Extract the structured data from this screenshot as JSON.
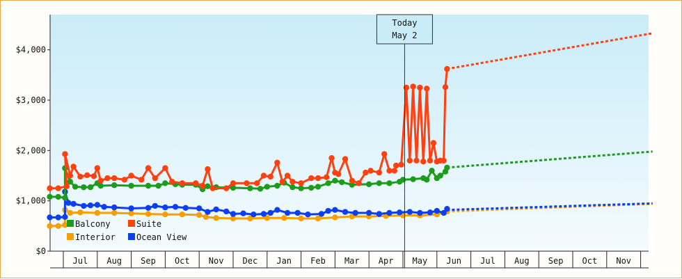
{
  "chart_data": {
    "type": "line",
    "title": "",
    "xlabel": "",
    "ylabel": "",
    "currency": "$",
    "y_ticks": [
      "$0",
      "$1,000",
      "$2,000",
      "$3,000",
      "$4,000"
    ],
    "y_tick_values": [
      0,
      1000,
      2000,
      3000,
      4000
    ],
    "ylim": [
      0,
      4700
    ],
    "month_labels": [
      "Jul",
      "Aug",
      "Sep",
      "Oct",
      "Nov",
      "Dec",
      "Jan",
      "Feb",
      "Mar",
      "Apr",
      "May",
      "Jun",
      "Jul",
      "Aug",
      "Sep",
      "Oct",
      "Nov"
    ],
    "x_range_months": [
      0,
      17.35
    ],
    "today": {
      "line1": "Today",
      "line2": "May 2",
      "month_pos": 10.05
    },
    "grid": false,
    "legend_position": "bottom-left",
    "series": [
      {
        "name": "Suite",
        "color": "#ff4010",
        "history": [
          [
            -0.4,
            1250
          ],
          [
            -0.15,
            1250
          ],
          [
            0.1,
            1290
          ],
          [
            0.05,
            1930
          ],
          [
            0.2,
            1500
          ],
          [
            0.3,
            1680
          ],
          [
            0.5,
            1480
          ],
          [
            0.7,
            1510
          ],
          [
            0.9,
            1490
          ],
          [
            1.0,
            1650
          ],
          [
            1.1,
            1400
          ],
          [
            1.3,
            1450
          ],
          [
            1.5,
            1450
          ],
          [
            1.8,
            1420
          ],
          [
            2.0,
            1500
          ],
          [
            2.3,
            1420
          ],
          [
            2.5,
            1650
          ],
          [
            2.7,
            1450
          ],
          [
            3.0,
            1650
          ],
          [
            3.2,
            1380
          ],
          [
            3.5,
            1350
          ],
          [
            3.9,
            1350
          ],
          [
            4.1,
            1300
          ],
          [
            4.25,
            1630
          ],
          [
            4.4,
            1250
          ],
          [
            4.8,
            1250
          ],
          [
            5.0,
            1350
          ],
          [
            5.4,
            1350
          ],
          [
            5.7,
            1350
          ],
          [
            5.9,
            1500
          ],
          [
            6.1,
            1480
          ],
          [
            6.3,
            1760
          ],
          [
            6.45,
            1380
          ],
          [
            6.6,
            1500
          ],
          [
            6.75,
            1380
          ],
          [
            7.0,
            1350
          ],
          [
            7.3,
            1450
          ],
          [
            7.5,
            1450
          ],
          [
            7.75,
            1470
          ],
          [
            7.9,
            1850
          ],
          [
            8.0,
            1560
          ],
          [
            8.1,
            1530
          ],
          [
            8.3,
            1830
          ],
          [
            8.5,
            1400
          ],
          [
            8.7,
            1350
          ],
          [
            8.9,
            1560
          ],
          [
            9.05,
            1600
          ],
          [
            9.3,
            1560
          ],
          [
            9.45,
            1930
          ],
          [
            9.6,
            1600
          ],
          [
            9.75,
            1600
          ],
          [
            9.8,
            1700
          ],
          [
            9.95,
            1720
          ],
          [
            10.1,
            3250
          ],
          [
            10.2,
            1800
          ],
          [
            10.3,
            3270
          ],
          [
            10.4,
            1800
          ],
          [
            10.5,
            3250
          ],
          [
            10.6,
            1780
          ],
          [
            10.7,
            3230
          ],
          [
            10.8,
            1800
          ],
          [
            10.9,
            2150
          ],
          [
            11.0,
            1780
          ],
          [
            11.1,
            1800
          ],
          [
            11.2,
            1800
          ],
          [
            11.25,
            3260
          ],
          [
            11.3,
            3620
          ]
        ],
        "forecast": [
          [
            11.3,
            3620
          ],
          [
            17.35,
            4330
          ]
        ]
      },
      {
        "name": "Balcony",
        "color": "#1c9b1c",
        "history": [
          [
            -0.4,
            1080
          ],
          [
            -0.15,
            1080
          ],
          [
            0.05,
            1060
          ],
          [
            0.05,
            1650
          ],
          [
            0.2,
            1380
          ],
          [
            0.35,
            1280
          ],
          [
            0.6,
            1270
          ],
          [
            0.8,
            1270
          ],
          [
            1.0,
            1350
          ],
          [
            1.1,
            1300
          ],
          [
            1.5,
            1310
          ],
          [
            2.0,
            1300
          ],
          [
            2.5,
            1300
          ],
          [
            2.8,
            1300
          ],
          [
            3.0,
            1350
          ],
          [
            3.3,
            1330
          ],
          [
            3.5,
            1320
          ],
          [
            3.9,
            1320
          ],
          [
            4.1,
            1230
          ],
          [
            4.25,
            1290
          ],
          [
            4.5,
            1270
          ],
          [
            5.0,
            1260
          ],
          [
            5.5,
            1250
          ],
          [
            5.8,
            1240
          ],
          [
            6.0,
            1280
          ],
          [
            6.3,
            1300
          ],
          [
            6.5,
            1360
          ],
          [
            6.75,
            1270
          ],
          [
            7.0,
            1250
          ],
          [
            7.3,
            1260
          ],
          [
            7.5,
            1280
          ],
          [
            7.8,
            1350
          ],
          [
            8.0,
            1400
          ],
          [
            8.2,
            1370
          ],
          [
            8.5,
            1320
          ],
          [
            9.0,
            1330
          ],
          [
            9.3,
            1350
          ],
          [
            9.6,
            1350
          ],
          [
            9.9,
            1380
          ],
          [
            10.0,
            1420
          ],
          [
            10.3,
            1430
          ],
          [
            10.6,
            1450
          ],
          [
            10.7,
            1420
          ],
          [
            10.85,
            1600
          ],
          [
            11.0,
            1450
          ],
          [
            11.1,
            1500
          ],
          [
            11.25,
            1580
          ],
          [
            11.3,
            1660
          ]
        ],
        "forecast": [
          [
            11.3,
            1660
          ],
          [
            17.35,
            1980
          ]
        ]
      },
      {
        "name": "Ocean View",
        "color": "#0b3ff0",
        "history": [
          [
            -0.4,
            670
          ],
          [
            -0.15,
            670
          ],
          [
            0.05,
            680
          ],
          [
            0.05,
            1180
          ],
          [
            0.15,
            960
          ],
          [
            0.3,
            940
          ],
          [
            0.6,
            900
          ],
          [
            0.8,
            910
          ],
          [
            1.0,
            920
          ],
          [
            1.2,
            880
          ],
          [
            1.5,
            870
          ],
          [
            2.0,
            850
          ],
          [
            2.5,
            860
          ],
          [
            2.7,
            900
          ],
          [
            3.0,
            870
          ],
          [
            3.3,
            880
          ],
          [
            3.6,
            860
          ],
          [
            4.0,
            850
          ],
          [
            4.25,
            780
          ],
          [
            4.5,
            830
          ],
          [
            4.8,
            790
          ],
          [
            5.0,
            740
          ],
          [
            5.3,
            750
          ],
          [
            5.6,
            730
          ],
          [
            5.9,
            740
          ],
          [
            6.1,
            760
          ],
          [
            6.3,
            820
          ],
          [
            6.6,
            760
          ],
          [
            6.9,
            760
          ],
          [
            7.2,
            730
          ],
          [
            7.6,
            740
          ],
          [
            7.8,
            800
          ],
          [
            8.0,
            820
          ],
          [
            8.3,
            780
          ],
          [
            8.6,
            760
          ],
          [
            9.0,
            760
          ],
          [
            9.3,
            740
          ],
          [
            9.6,
            760
          ],
          [
            9.9,
            770
          ],
          [
            10.2,
            780
          ],
          [
            10.5,
            760
          ],
          [
            10.8,
            770
          ],
          [
            11.0,
            800
          ],
          [
            11.2,
            760
          ],
          [
            11.3,
            840
          ]
        ],
        "forecast": [
          [
            11.3,
            820
          ],
          [
            17.35,
            950
          ]
        ]
      },
      {
        "name": "Interior",
        "color": "#f5a000",
        "history": [
          [
            -0.4,
            500
          ],
          [
            -0.15,
            500
          ],
          [
            0.05,
            520
          ],
          [
            0.05,
            820
          ],
          [
            0.2,
            760
          ],
          [
            0.5,
            770
          ],
          [
            1.0,
            760
          ],
          [
            1.5,
            760
          ],
          [
            2.0,
            750
          ],
          [
            2.5,
            740
          ],
          [
            3.0,
            730
          ],
          [
            3.5,
            730
          ],
          [
            4.0,
            720
          ],
          [
            4.2,
            680
          ],
          [
            4.5,
            660
          ],
          [
            5.0,
            650
          ],
          [
            5.5,
            650
          ],
          [
            6.0,
            660
          ],
          [
            6.5,
            660
          ],
          [
            7.0,
            650
          ],
          [
            7.5,
            650
          ],
          [
            8.0,
            670
          ],
          [
            8.5,
            690
          ],
          [
            9.0,
            690
          ],
          [
            9.5,
            700
          ],
          [
            10.0,
            710
          ],
          [
            10.5,
            710
          ],
          [
            11.0,
            730
          ],
          [
            11.3,
            790
          ]
        ],
        "forecast": [
          [
            11.3,
            790
          ],
          [
            17.35,
            940
          ]
        ]
      }
    ],
    "legend": [
      {
        "name": "Balcony",
        "color": "#1c9b1c"
      },
      {
        "name": "Suite",
        "color": "#ff4010"
      },
      {
        "name": "Interior",
        "color": "#f5a000"
      },
      {
        "name": "Ocean View",
        "color": "#0b3ff0"
      }
    ]
  }
}
